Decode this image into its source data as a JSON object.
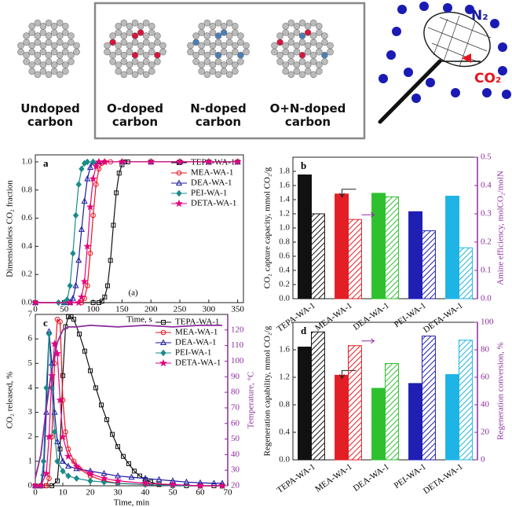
{
  "diagram": {
    "labels": [
      "Undoped carbon",
      "O-doped carbon",
      "N-doped carbon",
      "O+N-doped carbon"
    ],
    "gas_n2": "N₂",
    "gas_co2": "CO₂"
  },
  "chart_data": [
    {
      "type": "line",
      "label": "a",
      "annotation": "(a)",
      "x_label": "Time, s",
      "y_label": "Dimensionless CO₂ fraction",
      "xlim": [
        0,
        360
      ],
      "xticks": [
        0,
        50,
        100,
        150,
        200,
        250,
        300,
        350
      ],
      "ylim": [
        0,
        1.05
      ],
      "yticks": [
        {
          "value": 0,
          "label": "0.0"
        },
        0.2,
        0.4,
        0.6,
        0.8,
        {
          "value": 1,
          "label": "1.0"
        }
      ],
      "legend": "upper right",
      "series": [
        {
          "name": "TEPA-WA-1",
          "color": "#111111",
          "marker": "square",
          "x": [
            0,
            50,
            100,
            110,
            115,
            120,
            125,
            130,
            135,
            140,
            145,
            150,
            155,
            160,
            200,
            250,
            300,
            350
          ],
          "values": [
            0,
            0,
            0,
            0,
            0.01,
            0.04,
            0.12,
            0.3,
            0.55,
            0.78,
            0.92,
            0.98,
            1,
            1,
            1,
            1,
            1,
            1
          ]
        },
        {
          "name": "MEA-WA-1",
          "color": "#e8141c",
          "marker": "circle",
          "x": [
            0,
            60,
            80,
            85,
            90,
            95,
            100,
            105,
            110,
            115,
            120,
            130,
            150,
            200,
            250,
            300,
            350
          ],
          "values": [
            0,
            0,
            0,
            0.03,
            0.12,
            0.35,
            0.62,
            0.84,
            0.95,
            0.99,
            1,
            1,
            1,
            1,
            1,
            1,
            1
          ]
        },
        {
          "name": "DEA-WA-1",
          "color": "#1a1aa0",
          "marker": "triangle",
          "x": [
            0,
            50,
            60,
            65,
            70,
            75,
            80,
            85,
            90,
            95,
            100,
            110,
            150,
            200,
            250,
            300,
            350
          ],
          "values": [
            0,
            0,
            0,
            0.03,
            0.12,
            0.3,
            0.52,
            0.72,
            0.88,
            0.96,
            1,
            1,
            1,
            1,
            1,
            1,
            1
          ]
        },
        {
          "name": "PEI-WA-1",
          "color": "#1a8a8a",
          "marker": "diamond",
          "x": [
            0,
            40,
            50,
            55,
            60,
            65,
            70,
            75,
            80,
            85,
            90,
            100,
            150,
            200,
            250,
            300,
            350
          ],
          "values": [
            0,
            0,
            0,
            0.02,
            0.12,
            0.35,
            0.62,
            0.84,
            0.95,
            0.99,
            1,
            1,
            1,
            1,
            1,
            1,
            1
          ]
        },
        {
          "name": "DETA-WA-1",
          "color": "#e6007e",
          "marker": "star",
          "x": [
            0,
            60,
            75,
            80,
            85,
            90,
            95,
            100,
            105,
            110,
            120,
            150,
            200,
            250,
            300,
            350
          ],
          "values": [
            0,
            0,
            0,
            0.04,
            0.15,
            0.4,
            0.68,
            0.88,
            0.97,
            1,
            1,
            1,
            1,
            1,
            1,
            1
          ]
        }
      ]
    },
    {
      "type": "bar",
      "label": "b",
      "y_label": "CO₂ capture capacity, mmol CO₂/g",
      "y2_label": "Amine efficiency, molCO₂/molN",
      "y2color": "#8b2c9c",
      "categories": [
        "TEPA-WA-1",
        "MEA-WA-1",
        "DEA-WA-1",
        "PEI-WA-1",
        "DETA-WA-1"
      ],
      "colors": [
        "#111111",
        "#e31e24",
        "#2ec02e",
        "#1f1fb4",
        "#1fb4e6"
      ],
      "ylim": [
        0,
        2.0
      ],
      "yticks": [
        {
          "value": 0,
          "label": "0.0"
        },
        0.2,
        0.4,
        0.6,
        0.8,
        {
          "value": 1,
          "label": "1.0"
        },
        1.2,
        1.4,
        1.6,
        1.8
      ],
      "y2lim": [
        0,
        0.5
      ],
      "y2ticks": [
        {
          "value": 0,
          "label": "0.0"
        },
        0.1,
        0.2,
        0.3,
        0.4,
        0.5
      ],
      "series": [
        {
          "values": [
            1.75,
            1.48,
            1.49,
            1.23,
            1.45
          ]
        },
        {
          "values": [
            0.3,
            0.28,
            0.36,
            0.24,
            0.18
          ],
          "axis": "y2",
          "hatched": true
        }
      ]
    },
    {
      "type": "line",
      "label": "c",
      "x_label": "Time, min",
      "y_label": "CO₂ released, %",
      "y2_label": "Temperature, °C",
      "y2color": "#8b2c9c",
      "xlim": [
        0,
        70
      ],
      "xticks": [
        0,
        10,
        20,
        30,
        40,
        50,
        60,
        70
      ],
      "ylim": [
        0,
        7
      ],
      "yticks": [
        0,
        1,
        2,
        3,
        4,
        5,
        6,
        7
      ],
      "y2lim": [
        20,
        130
      ],
      "y2ticks": [
        20,
        30,
        40,
        50,
        60,
        70,
        80,
        90,
        100,
        110,
        120
      ],
      "legend": "upper right",
      "series": [
        {
          "name": "TEPA-WA-1",
          "color": "#111111",
          "marker": "square",
          "x": [
            0,
            2,
            4,
            6,
            8,
            9,
            10,
            11,
            12,
            13,
            14,
            16,
            18,
            20,
            22,
            24,
            26,
            28,
            30,
            32,
            34,
            36,
            38,
            40,
            42,
            45,
            50,
            55,
            60,
            65,
            68
          ],
          "values": [
            0,
            0,
            0,
            0,
            0.2,
            1.5,
            4.5,
            6.5,
            6.9,
            6.9,
            6.8,
            6.2,
            5.5,
            4.7,
            4.0,
            3.3,
            2.7,
            2.1,
            1.6,
            1.2,
            0.9,
            0.6,
            0.4,
            0.25,
            0.15,
            0.05,
            0.02,
            0,
            0,
            0,
            0
          ]
        },
        {
          "name": "MEA-WA-1",
          "color": "#e8141c",
          "marker": "circle",
          "x": [
            0,
            2,
            4,
            5,
            6,
            7,
            8,
            9,
            10,
            11,
            12,
            14,
            16,
            20,
            25,
            30,
            40,
            50,
            60,
            68
          ],
          "values": [
            0,
            0,
            0,
            0.3,
            2,
            5,
            6.8,
            6.7,
            3.5,
            2.2,
            1.5,
            1.0,
            0.7,
            0.4,
            0.2,
            0.1,
            0.05,
            0,
            0,
            0
          ]
        },
        {
          "name": "DEA-WA-1",
          "color": "#1a1aa0",
          "marker": "triangle",
          "x": [
            0,
            2,
            3,
            4,
            5,
            6,
            7,
            8,
            10,
            12,
            15,
            20,
            25,
            30,
            35,
            40,
            45,
            50,
            55,
            60,
            65,
            68
          ],
          "values": [
            0,
            0,
            0.5,
            3,
            6.3,
            5,
            3,
            1.8,
            1.0,
            0.8,
            0.7,
            0.6,
            0.5,
            0.4,
            0.35,
            0.3,
            0.25,
            0.2,
            0.15,
            0.12,
            0.1,
            0.1
          ]
        },
        {
          "name": "PEI-WA-1",
          "color": "#1a8a8a",
          "marker": "diamond",
          "x": [
            0,
            2,
            3,
            4,
            5,
            6,
            7,
            8,
            10,
            12,
            15,
            20,
            25,
            30,
            40,
            50,
            60,
            68
          ],
          "values": [
            0,
            0,
            1,
            4,
            6.2,
            4,
            2.2,
            1.0,
            0.6,
            0.4,
            0.3,
            0.2,
            0.15,
            0.1,
            0.05,
            0,
            0,
            0
          ]
        },
        {
          "name": "DETA-WA-1",
          "color": "#e6007e",
          "marker": "star",
          "x": [
            0,
            2,
            4,
            5,
            6,
            7,
            8,
            9,
            10,
            12,
            15,
            20,
            25,
            30,
            40,
            50,
            60,
            68
          ],
          "values": [
            0,
            0,
            0.5,
            2,
            4.5,
            5.8,
            5.4,
            3.5,
            2.0,
            1.2,
            0.8,
            0.5,
            0.3,
            0.2,
            0.1,
            0.05,
            0,
            0
          ]
        },
        {
          "color": "#8b2c9c",
          "marker": "none",
          "axis": "y2",
          "x": [
            0,
            2,
            4,
            6,
            8,
            10,
            12,
            15,
            20,
            30,
            40,
            50,
            60,
            68
          ],
          "values": [
            25,
            40,
            70,
            95,
            112,
            120,
            122,
            122,
            123,
            122,
            123,
            122,
            123,
            123
          ]
        }
      ]
    },
    {
      "type": "bar",
      "label": "d",
      "y_label": "Regeneration capability, mmol CO₂/g",
      "y2_label": "Regeneration conversion, %",
      "y2color": "#8b2c9c",
      "categories": [
        "TEPA-WA-1",
        "MEA-WA-1",
        "DEA-WA-1",
        "PEI-WA-1",
        "DETA-WA-1"
      ],
      "colors": [
        "#111111",
        "#e31e24",
        "#2ec02e",
        "#1f1fb4",
        "#1fb4e6"
      ],
      "ylim": [
        0,
        2.0
      ],
      "yticks": [
        {
          "value": 0,
          "label": "0.0"
        },
        0.4,
        0.8,
        1.2,
        1.6
      ],
      "y2lim": [
        0,
        100
      ],
      "y2ticks": [
        0,
        20,
        40,
        60,
        80,
        100
      ],
      "series": [
        {
          "values": [
            1.64,
            1.23,
            1.04,
            1.11,
            1.24
          ]
        },
        {
          "values": [
            93,
            83,
            70,
            90,
            87
          ],
          "axis": "y2",
          "hatched": true
        }
      ]
    }
  ]
}
